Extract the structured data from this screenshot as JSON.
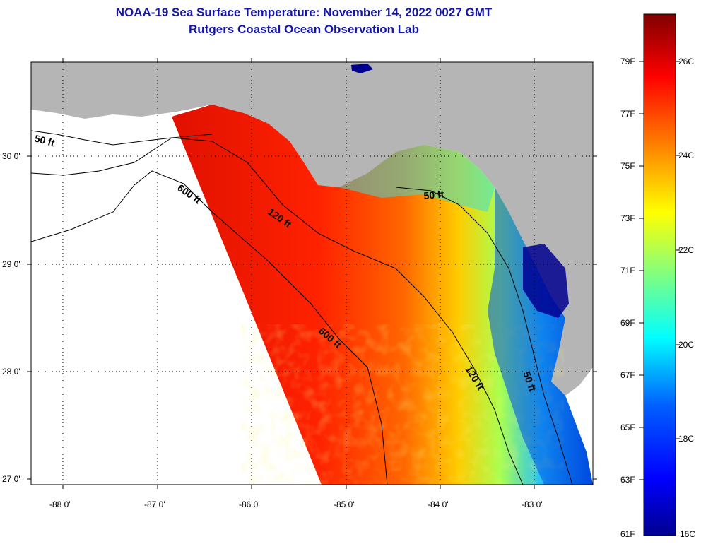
{
  "title": {
    "line1": "NOAA-19 Sea Surface Temperature:  November 14, 2022 0027 GMT",
    "line2": "Rutgers Coastal Ocean Observation Lab"
  },
  "map": {
    "lat_labels": [
      "30 0'",
      "29 0'",
      "28 0'",
      "27 0'"
    ],
    "lon_labels": [
      "-88 0'",
      "-87 0'",
      "-86 0'",
      "-85 0'",
      "-84 0'",
      "-83 0'"
    ],
    "contour_labels": [
      "50 ft",
      "600 ft",
      "120 ft",
      "50 ft",
      "600 ft",
      "120 ft",
      "50 ft"
    ],
    "colors": {
      "land": "#b5b5b5",
      "no_data": "#ffffff",
      "grid": "#000000"
    }
  },
  "colorbar": {
    "fahrenheit_labels": [
      "79F",
      "77F",
      "75F",
      "73F",
      "71F",
      "69F",
      "67F",
      "65F",
      "63F",
      "61F"
    ],
    "celsius_labels": [
      "26C",
      "24C",
      "22C",
      "20C",
      "18C",
      "16C"
    ],
    "range_c": [
      16,
      27
    ],
    "colors": [
      "#00008f",
      "#0000ff",
      "#0080ff",
      "#00ffff",
      "#80ff80",
      "#ffff00",
      "#ff8000",
      "#ff0000",
      "#800000"
    ]
  }
}
